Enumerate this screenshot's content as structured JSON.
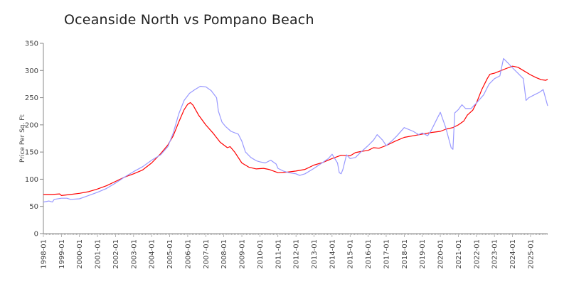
{
  "chart_data": {
    "type": "line",
    "title": "Oceanside North vs Pompano Beach",
    "xlabel": "",
    "ylabel": "Price Per Sq. Ft",
    "ylim": [
      0,
      350
    ],
    "yticks": [
      0,
      50,
      100,
      150,
      200,
      250,
      300,
      350
    ],
    "xtick_labels": [
      "1998-01",
      "1999-01",
      "2000-01",
      "2001-01",
      "2002-01",
      "2003-01",
      "2004-01",
      "2005-01",
      "2006-01",
      "2007-01",
      "2008-01",
      "2009-01",
      "2010-01",
      "2011-01",
      "2012-01",
      "2013-01",
      "2014-01",
      "2015-01",
      "2016-01",
      "2017-01",
      "2018-01",
      "2019-01",
      "2020-01",
      "2021-01",
      "2022-01",
      "2023-01",
      "2024-01",
      "2025-01"
    ],
    "xlim": [
      1998.0,
      2025.95
    ],
    "grid": false,
    "legend": "none",
    "series": [
      {
        "color": "#ff0000",
        "points": [
          [
            1998.0,
            72
          ],
          [
            1998.5,
            72
          ],
          [
            1998.9,
            73
          ],
          [
            1999.0,
            70
          ],
          [
            1999.5,
            72
          ],
          [
            2000.0,
            74
          ],
          [
            2000.5,
            77
          ],
          [
            2001.0,
            82
          ],
          [
            2001.5,
            88
          ],
          [
            2002.0,
            96
          ],
          [
            2002.5,
            104
          ],
          [
            2003.0,
            110
          ],
          [
            2003.5,
            117
          ],
          [
            2004.0,
            130
          ],
          [
            2004.5,
            147
          ],
          [
            2004.9,
            163
          ],
          [
            2005.2,
            180
          ],
          [
            2005.5,
            205
          ],
          [
            2005.8,
            228
          ],
          [
            2006.0,
            238
          ],
          [
            2006.15,
            241
          ],
          [
            2006.3,
            236
          ],
          [
            2006.6,
            218
          ],
          [
            2007.0,
            200
          ],
          [
            2007.4,
            185
          ],
          [
            2007.8,
            168
          ],
          [
            2008.2,
            158
          ],
          [
            2008.35,
            160
          ],
          [
            2008.6,
            150
          ],
          [
            2009.0,
            130
          ],
          [
            2009.4,
            122
          ],
          [
            2009.8,
            119
          ],
          [
            2010.2,
            120
          ],
          [
            2010.5,
            118
          ],
          [
            2011.0,
            112
          ],
          [
            2011.5,
            113
          ],
          [
            2012.0,
            115
          ],
          [
            2012.5,
            118
          ],
          [
            2013.0,
            126
          ],
          [
            2013.5,
            131
          ],
          [
            2014.0,
            138
          ],
          [
            2014.5,
            144
          ],
          [
            2015.0,
            143
          ],
          [
            2015.3,
            149
          ],
          [
            2015.6,
            151
          ],
          [
            2016.0,
            153
          ],
          [
            2016.3,
            158
          ],
          [
            2016.6,
            157
          ],
          [
            2017.0,
            162
          ],
          [
            2017.5,
            170
          ],
          [
            2018.0,
            177
          ],
          [
            2018.5,
            180
          ],
          [
            2019.0,
            183
          ],
          [
            2019.5,
            186
          ],
          [
            2020.0,
            188
          ],
          [
            2020.3,
            192
          ],
          [
            2020.7,
            195
          ],
          [
            2021.0,
            200
          ],
          [
            2021.3,
            207
          ],
          [
            2021.5,
            218
          ],
          [
            2021.8,
            227
          ],
          [
            2022.0,
            240
          ],
          [
            2022.3,
            265
          ],
          [
            2022.6,
            285
          ],
          [
            2022.75,
            293
          ],
          [
            2023.0,
            295
          ],
          [
            2023.3,
            299
          ],
          [
            2023.6,
            303
          ],
          [
            2024.0,
            308
          ],
          [
            2024.3,
            306
          ],
          [
            2024.6,
            300
          ],
          [
            2025.0,
            292
          ],
          [
            2025.3,
            287
          ],
          [
            2025.6,
            283
          ],
          [
            2025.85,
            282
          ],
          [
            2025.95,
            284
          ]
        ]
      },
      {
        "color": "#9999ff",
        "points": [
          [
            1998.0,
            58
          ],
          [
            1998.3,
            60
          ],
          [
            1998.5,
            58
          ],
          [
            1998.6,
            63
          ],
          [
            1999.0,
            65
          ],
          [
            1999.3,
            65
          ],
          [
            1999.5,
            63
          ],
          [
            2000.0,
            64
          ],
          [
            2000.5,
            70
          ],
          [
            2001.0,
            76
          ],
          [
            2001.5,
            83
          ],
          [
            2002.0,
            93
          ],
          [
            2002.5,
            104
          ],
          [
            2003.0,
            114
          ],
          [
            2003.5,
            123
          ],
          [
            2004.0,
            135
          ],
          [
            2004.5,
            145
          ],
          [
            2004.9,
            160
          ],
          [
            2005.2,
            185
          ],
          [
            2005.5,
            220
          ],
          [
            2005.8,
            245
          ],
          [
            2006.1,
            258
          ],
          [
            2006.4,
            265
          ],
          [
            2006.7,
            271
          ],
          [
            2007.0,
            270
          ],
          [
            2007.3,
            263
          ],
          [
            2007.6,
            250
          ],
          [
            2007.7,
            225
          ],
          [
            2007.9,
            205
          ],
          [
            2008.1,
            197
          ],
          [
            2008.4,
            188
          ],
          [
            2008.8,
            183
          ],
          [
            2009.0,
            170
          ],
          [
            2009.2,
            150
          ],
          [
            2009.5,
            140
          ],
          [
            2009.8,
            134
          ],
          [
            2010.0,
            132
          ],
          [
            2010.3,
            130
          ],
          [
            2010.6,
            135
          ],
          [
            2010.9,
            128
          ],
          [
            2011.0,
            120
          ],
          [
            2011.3,
            115
          ],
          [
            2011.6,
            112
          ],
          [
            2012.0,
            110
          ],
          [
            2012.2,
            107
          ],
          [
            2012.5,
            110
          ],
          [
            2013.0,
            120
          ],
          [
            2013.4,
            129
          ],
          [
            2013.8,
            138
          ],
          [
            2014.0,
            146
          ],
          [
            2014.3,
            130
          ],
          [
            2014.4,
            112
          ],
          [
            2014.5,
            110
          ],
          [
            2014.6,
            118
          ],
          [
            2014.8,
            145
          ],
          [
            2015.0,
            138
          ],
          [
            2015.3,
            140
          ],
          [
            2015.6,
            150
          ],
          [
            2016.0,
            162
          ],
          [
            2016.3,
            172
          ],
          [
            2016.5,
            182
          ],
          [
            2016.8,
            172
          ],
          [
            2017.0,
            162
          ],
          [
            2017.3,
            170
          ],
          [
            2017.6,
            180
          ],
          [
            2018.0,
            195
          ],
          [
            2018.5,
            188
          ],
          [
            2018.8,
            182
          ],
          [
            2019.0,
            185
          ],
          [
            2019.3,
            180
          ],
          [
            2019.5,
            190
          ],
          [
            2019.8,
            210
          ],
          [
            2020.0,
            223
          ],
          [
            2020.3,
            195
          ],
          [
            2020.6,
            158
          ],
          [
            2020.7,
            155
          ],
          [
            2020.8,
            222
          ],
          [
            2021.0,
            228
          ],
          [
            2021.2,
            237
          ],
          [
            2021.4,
            230
          ],
          [
            2021.7,
            230
          ],
          [
            2022.0,
            240
          ],
          [
            2022.4,
            255
          ],
          [
            2022.7,
            275
          ],
          [
            2023.0,
            285
          ],
          [
            2023.3,
            290
          ],
          [
            2023.5,
            322
          ],
          [
            2023.8,
            312
          ],
          [
            2024.0,
            305
          ],
          [
            2024.3,
            295
          ],
          [
            2024.6,
            285
          ],
          [
            2024.75,
            245
          ],
          [
            2024.9,
            250
          ],
          [
            2025.2,
            255
          ],
          [
            2025.5,
            260
          ],
          [
            2025.7,
            265
          ],
          [
            2025.95,
            235
          ]
        ]
      }
    ]
  }
}
